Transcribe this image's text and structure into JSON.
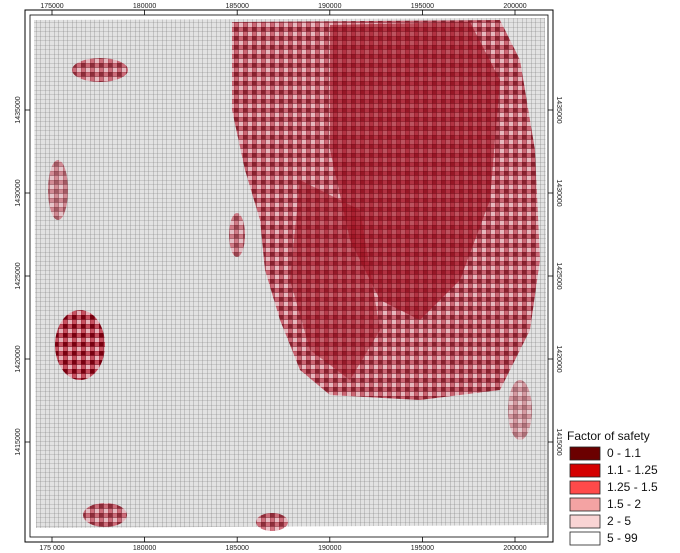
{
  "map": {
    "x_labels_top": [
      "175000",
      "180000",
      "185000",
      "190000",
      "195000",
      "200000"
    ],
    "x_labels_bottom": [
      "175 000",
      "180000",
      "185000",
      "190000",
      "195000",
      "200000"
    ],
    "y_labels": [
      "1435000",
      "1430000",
      "1425000",
      "1420000",
      "1415000"
    ],
    "legend": {
      "title": "Factor of safety",
      "items": [
        {
          "label": "0 - 1.1",
          "color": "#6b0000"
        },
        {
          "label": "1.1 - 1.25",
          "color": "#d40000"
        },
        {
          "label": "1.25 - 1.5",
          "color": "#ff4a4a"
        },
        {
          "label": "1.5 - 2",
          "color": "#f4a3a3"
        },
        {
          "label": "2 - 5",
          "color": "#f9d4d4"
        },
        {
          "label": "5 - 99",
          "color": "#ffffff"
        }
      ]
    }
  }
}
